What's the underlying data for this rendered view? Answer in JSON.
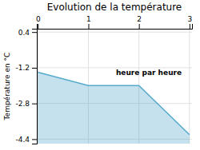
{
  "chart_data": {
    "type": "area",
    "title": "Evolution de la température",
    "ylabel": "Température en °C",
    "annotation": "heure par heure",
    "x": [
      0,
      1,
      2,
      3
    ],
    "values": [
      -1.4,
      -2.0,
      -2.0,
      -4.2
    ],
    "color": "#55aacc",
    "xlim": [
      -0.02,
      3.05
    ],
    "xticks": [
      0,
      1,
      2,
      3
    ],
    "ylim": [
      -4.6,
      0.55
    ],
    "yticks": [
      0.4,
      -1.2,
      -2.8,
      -4.4
    ],
    "grid": true
  }
}
